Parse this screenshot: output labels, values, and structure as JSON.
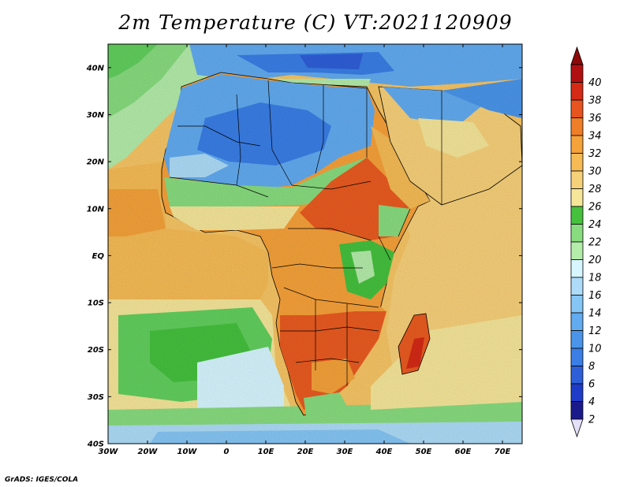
{
  "title": "2m Temperature (C) VT:2021120909",
  "credit": "GrADS: IGES/COLA",
  "colors": {
    "ocean_warm": "#f7c565",
    "ocean_mid": "#f6e69a",
    "ocean_cool": "#62cf5e",
    "ocean_cold": "#d7f6ff",
    "land_hot": "#ea5b21",
    "land_warm": "#f7a13a",
    "sahara_cool": "#5a8fe0",
    "border": "#000000"
  },
  "chart_data": {
    "type": "heatmap",
    "title": "2m Temperature (C) VT:2021120909",
    "xlabel": "",
    "ylabel": "",
    "xlim": [
      -30,
      75
    ],
    "ylim": [
      -40,
      45
    ],
    "x_ticks": [
      {
        "value": -30,
        "label": "30W"
      },
      {
        "value": -20,
        "label": "20W"
      },
      {
        "value": -10,
        "label": "10W"
      },
      {
        "value": 0,
        "label": "0"
      },
      {
        "value": 10,
        "label": "10E"
      },
      {
        "value": 20,
        "label": "20E"
      },
      {
        "value": 30,
        "label": "30E"
      },
      {
        "value": 40,
        "label": "40E"
      },
      {
        "value": 50,
        "label": "50E"
      },
      {
        "value": 60,
        "label": "60E"
      },
      {
        "value": 70,
        "label": "70E"
      }
    ],
    "y_ticks": [
      {
        "value": 40,
        "label": "40N"
      },
      {
        "value": 30,
        "label": "30N"
      },
      {
        "value": 20,
        "label": "20N"
      },
      {
        "value": 10,
        "label": "10N"
      },
      {
        "value": 0,
        "label": "EQ"
      },
      {
        "value": -10,
        "label": "10S"
      },
      {
        "value": -20,
        "label": "20S"
      },
      {
        "value": -30,
        "label": "30S"
      },
      {
        "value": -40,
        "label": "40S"
      }
    ],
    "colorbar": {
      "labels": [
        "2",
        "4",
        "6",
        "8",
        "10",
        "12",
        "14",
        "16",
        "18",
        "20",
        "22",
        "24",
        "26",
        "28",
        "30",
        "32",
        "34",
        "36",
        "38",
        "40"
      ],
      "colors": [
        "#1a1a8c",
        "#1e3cc8",
        "#2f5fd8",
        "#3a7ee6",
        "#4a95ea",
        "#62abf0",
        "#86c6f5",
        "#aedcf8",
        "#d7f6ff",
        "#b4ecaa",
        "#88dc7f",
        "#45c13e",
        "#f6e69a",
        "#f7d07a",
        "#f6bb55",
        "#f5a23a",
        "#ef7e28",
        "#e8541f",
        "#d42a16",
        "#b01012"
      ],
      "under_color": "#e4e0fa",
      "over_color": "#8c0a0a"
    }
  }
}
